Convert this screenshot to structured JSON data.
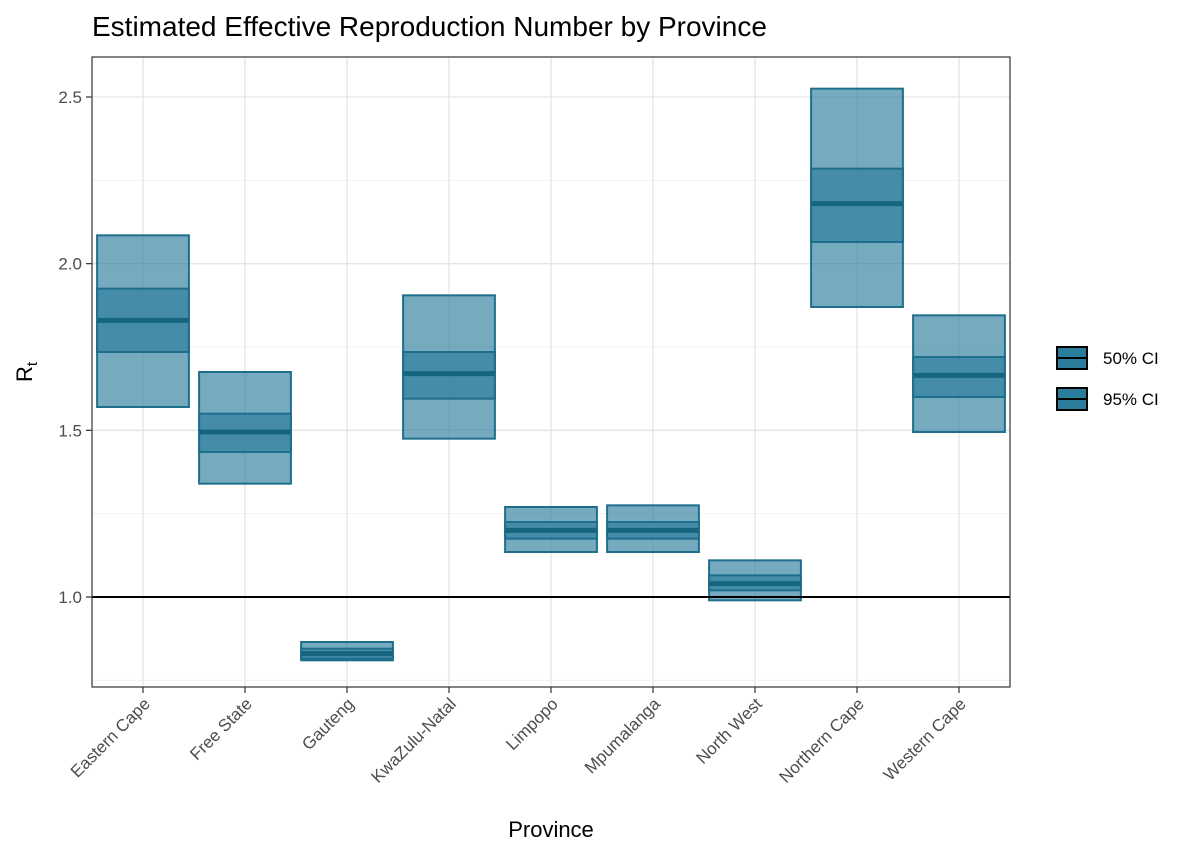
{
  "chart_data": {
    "type": "crossbar",
    "title": "Estimated Effective Reproduction Number by Province",
    "xlabel": "Province",
    "ylabel": "R",
    "ylabel_subscript": "t",
    "categories": [
      "Eastern Cape",
      "Free State",
      "Gauteng",
      "KwaZulu-Natal",
      "Limpopo",
      "Mpumalanga",
      "North West",
      "Northern Cape",
      "Western Cape"
    ],
    "median": [
      1.83,
      1.495,
      0.83,
      1.67,
      1.2,
      1.2,
      1.04,
      2.18,
      1.665
    ],
    "ci50_lower": [
      1.735,
      1.435,
      0.815,
      1.595,
      1.175,
      1.175,
      1.02,
      2.065,
      1.6
    ],
    "ci50_upper": [
      1.925,
      1.55,
      0.845,
      1.735,
      1.225,
      1.225,
      1.065,
      2.285,
      1.72
    ],
    "ci95_lower": [
      1.57,
      1.34,
      0.81,
      1.475,
      1.135,
      1.135,
      0.99,
      1.87,
      1.495
    ],
    "ci95_upper": [
      2.085,
      1.675,
      0.865,
      1.905,
      1.27,
      1.275,
      1.11,
      2.525,
      1.845
    ],
    "ylim": [
      0.73,
      2.62
    ],
    "yticks": [
      "1.0",
      "1.5",
      "2.0",
      "2.5"
    ],
    "reference_line": 1.0,
    "grid": true,
    "legend": {
      "position": "right",
      "entries": [
        "50% CI",
        "95% CI"
      ]
    },
    "colors": {
      "fill": "#2b7d9c",
      "fill_opacity": 0.65,
      "stroke": "#1e6f8c",
      "median": "#16657f"
    }
  }
}
